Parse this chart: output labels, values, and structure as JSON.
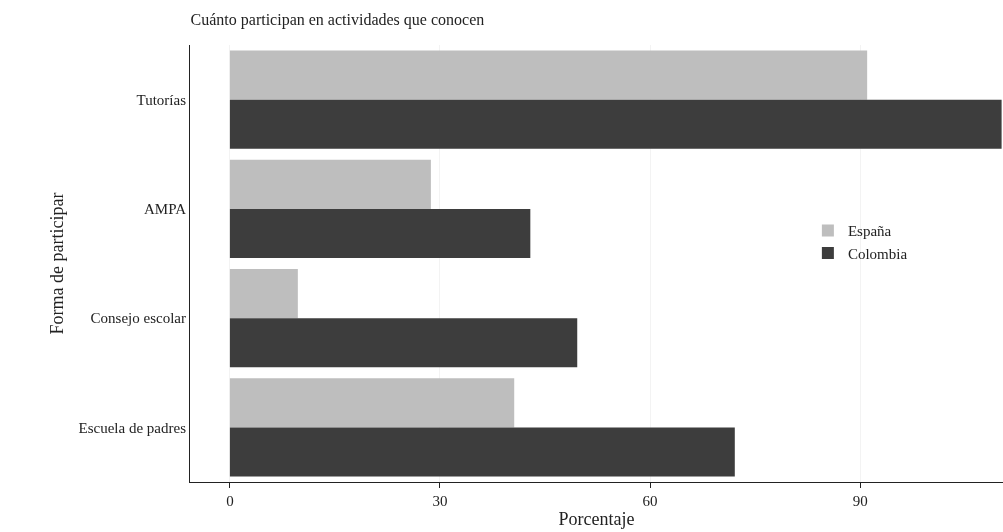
{
  "chart_data": {
    "type": "bar",
    "orientation": "horizontal",
    "title": "Cuánto participan en actividades que conocen",
    "xlabel": "Porcentaje",
    "ylabel": "Forma de participar",
    "categories": [
      "Tutorías",
      "AMPA",
      "Consejo escolar",
      "Escuela de padres"
    ],
    "series": [
      {
        "name": "España",
        "color": "#bebebe",
        "values": [
          91,
          28.7,
          9.7,
          40.6
        ]
      },
      {
        "name": "Colombia",
        "color": "#3d3d3d",
        "values": [
          110.2,
          42.9,
          49.6,
          72.1
        ]
      }
    ],
    "xlim": [
      -5.7,
      110.4
    ],
    "xticks": [
      0,
      30,
      60,
      90
    ],
    "grid": "x",
    "legend": "right"
  }
}
